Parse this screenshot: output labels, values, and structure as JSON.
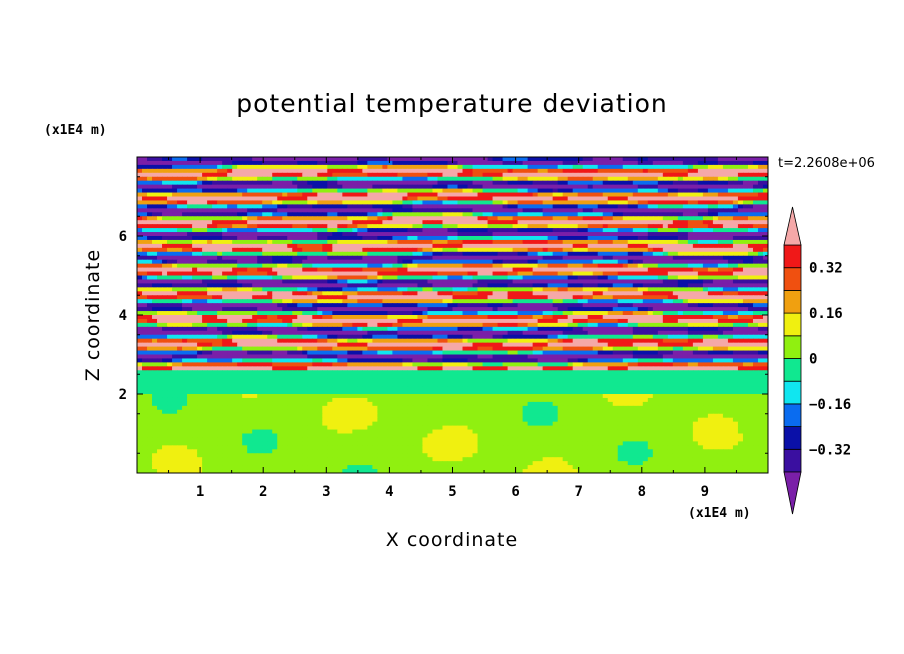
{
  "chart_data": {
    "type": "heatmap",
    "title": "potential temperature deviation",
    "xlabel": "X coordinate",
    "ylabel": "Z coordinate",
    "x_unit": "(x1E4 m)",
    "z_unit": "(x1E4 m)",
    "time_label": "t=2.2608e+06",
    "xlim": [
      0,
      10
    ],
    "ylim": [
      0,
      8
    ],
    "x_ticks": [
      "1",
      "2",
      "3",
      "4",
      "5",
      "6",
      "7",
      "8",
      "9"
    ],
    "y_ticks": [
      "2",
      "4",
      "6"
    ],
    "colorbar": {
      "levels": [
        -0.4,
        -0.32,
        -0.24,
        -0.16,
        -0.08,
        0,
        0.08,
        0.16,
        0.24,
        0.32,
        0.4
      ],
      "tick_labels": [
        "0.32",
        "0.16",
        "0",
        "-0.16",
        "-0.32"
      ],
      "colors": [
        "#7a1fa8",
        "#3a0fa0",
        "#0a10a8",
        "#0a6cf0",
        "#10e6f0",
        "#10e890",
        "#90f010",
        "#f0f010",
        "#f0a010",
        "#f05010",
        "#f01818",
        "#f5a8a8"
      ],
      "extend": "both"
    },
    "field_description_bands": [
      {
        "z_range": [
          0,
          2.0
        ],
        "value_range": [
          0,
          0.08
        ],
        "pattern": "green/lime mottled"
      },
      {
        "z_range": [
          2.0,
          2.6
        ],
        "value_range": [
          -0.08,
          0
        ],
        "pattern": "turquoise layer"
      },
      {
        "z_range": [
          2.6,
          8.0
        ],
        "value_range": [
          -0.4,
          0.4
        ],
        "pattern": "alternating saturated pink/purple layers"
      }
    ]
  }
}
